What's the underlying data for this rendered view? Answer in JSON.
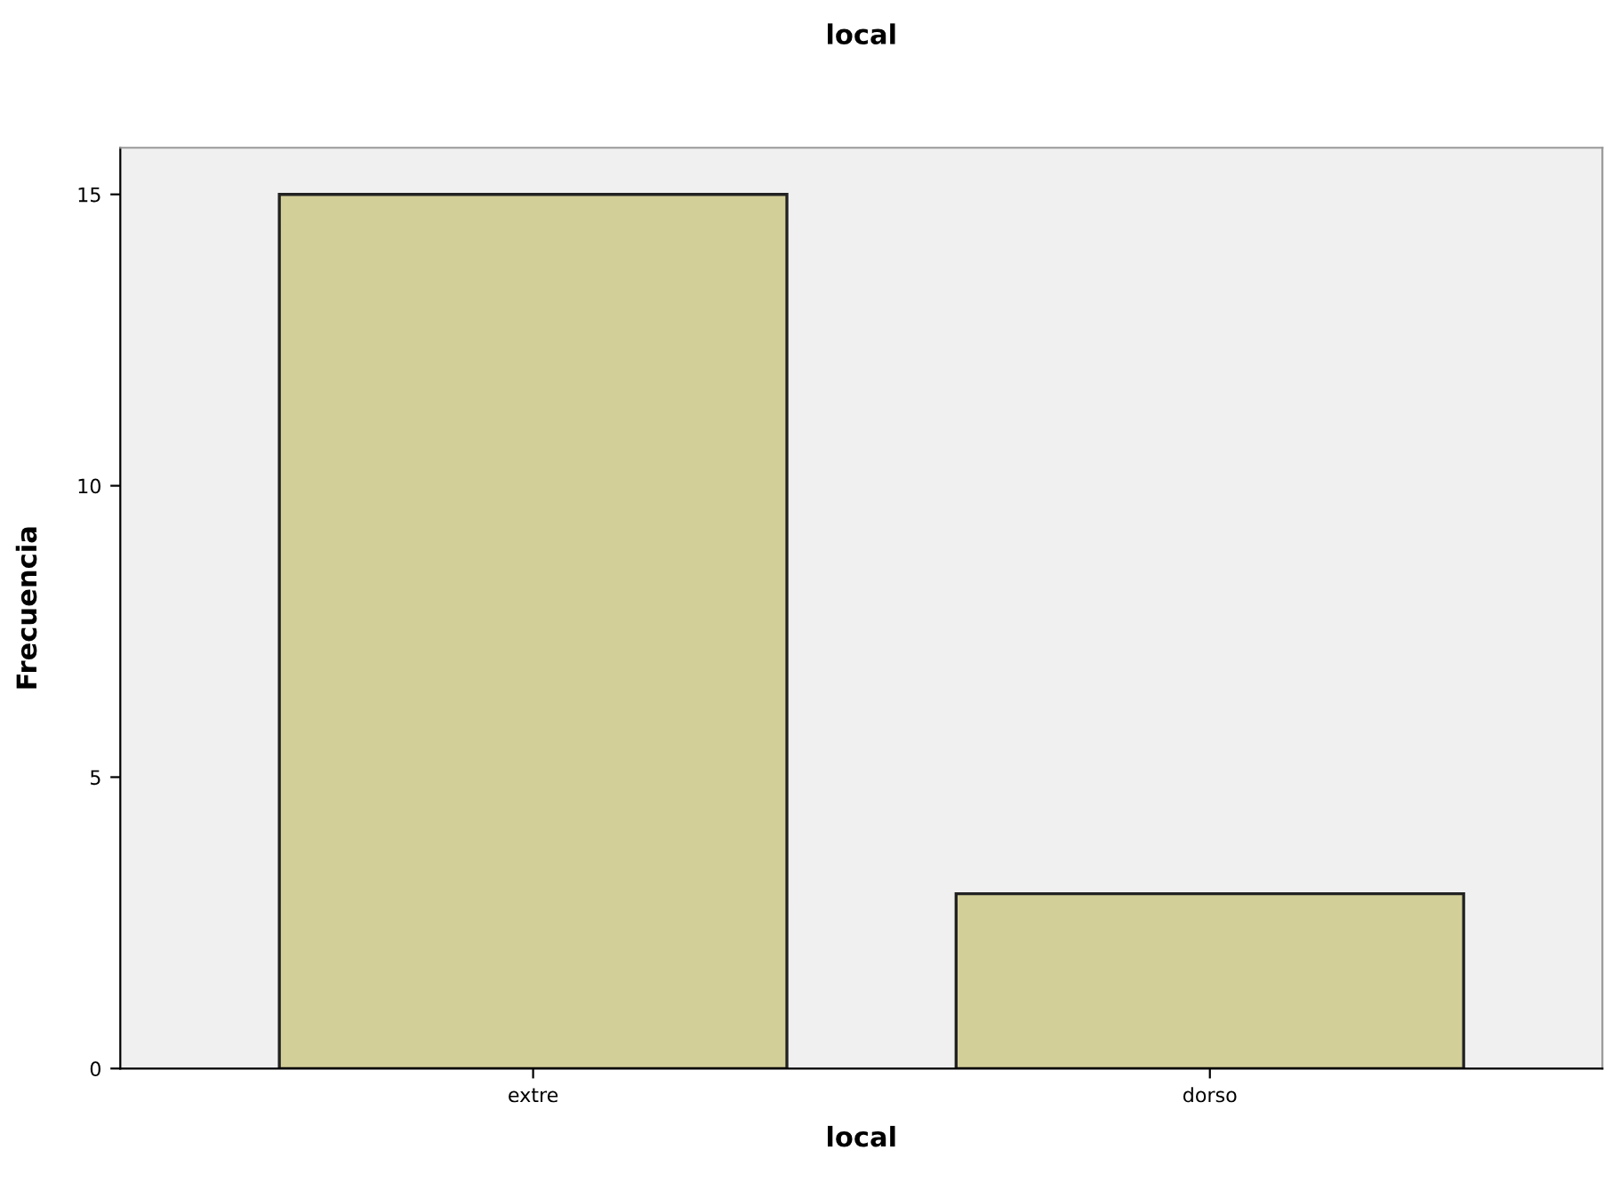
{
  "chart_data": {
    "type": "bar",
    "title": "local",
    "xlabel": "local",
    "ylabel": "Frecuencia",
    "categories": [
      "extre",
      "dorso"
    ],
    "values": [
      15,
      3
    ],
    "color": "#d3cf98",
    "ylim": [
      0,
      15.8
    ],
    "yticks": [
      0,
      5,
      10,
      15
    ],
    "grid": false,
    "legend": false
  }
}
